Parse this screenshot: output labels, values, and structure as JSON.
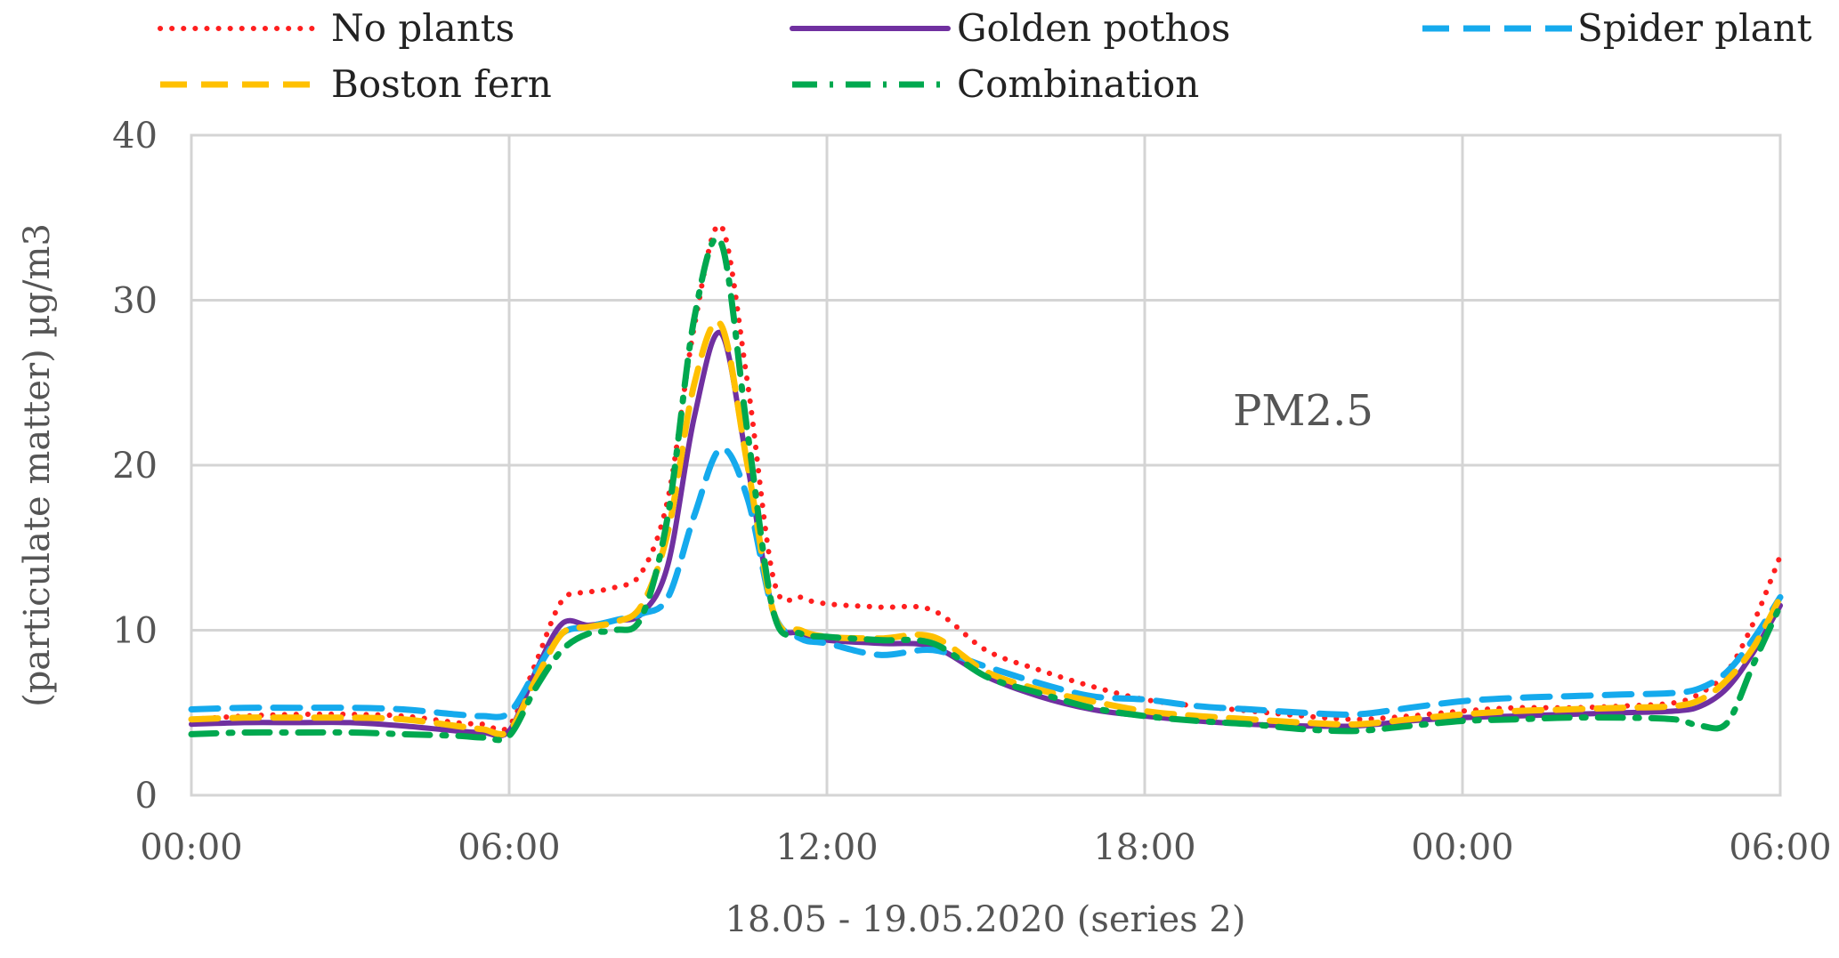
{
  "chart_data": {
    "type": "line",
    "title": "",
    "annotation": "PM2.5",
    "xlabel": "18.05 - 19.05.2020 (series 2)",
    "ylabel": "(particulate matter) µg/m3",
    "x_tick_labels": [
      "00:00",
      "06:00",
      "12:00",
      "18:00",
      "00:00",
      "06:00"
    ],
    "x_tick_hours": [
      0,
      6,
      12,
      18,
      24,
      30
    ],
    "xlim": [
      0,
      30
    ],
    "ylim": [
      0,
      40
    ],
    "y_ticks": [
      0,
      10,
      20,
      30,
      40
    ],
    "grid": true,
    "legend_position": "top",
    "x": [
      0,
      1,
      2,
      3,
      4,
      5,
      5.5,
      6,
      6.5,
      7,
      7.5,
      8,
      8.5,
      9,
      9.5,
      10,
      10.5,
      11,
      11.5,
      12,
      13,
      14,
      15,
      16,
      17,
      18,
      19,
      20,
      21,
      22,
      23,
      24,
      25,
      26,
      27,
      28,
      28.5,
      29,
      29.5,
      30
    ],
    "series": [
      {
        "name": "No plants",
        "color": "#ff1f1f",
        "style": "dotted",
        "values": [
          4.6,
          4.8,
          4.9,
          4.9,
          4.8,
          4.4,
          4.3,
          4.2,
          8.0,
          11.8,
          12.3,
          12.6,
          13.5,
          18.0,
          28.5,
          34.5,
          25.0,
          13.0,
          12.0,
          11.6,
          11.4,
          11.2,
          8.8,
          7.6,
          6.6,
          5.8,
          5.4,
          5.1,
          4.8,
          4.6,
          4.8,
          5.1,
          5.3,
          5.3,
          5.4,
          5.6,
          6.2,
          7.5,
          10.5,
          14.5
        ]
      },
      {
        "name": "Golden pothos",
        "color": "#7030a0",
        "style": "solid",
        "values": [
          4.3,
          4.4,
          4.4,
          4.4,
          4.2,
          3.9,
          3.8,
          3.9,
          7.5,
          10.4,
          10.3,
          10.6,
          11.0,
          14.0,
          23.0,
          28.0,
          20.0,
          11.0,
          9.8,
          9.4,
          9.2,
          9.0,
          7.2,
          6.0,
          5.2,
          4.8,
          4.5,
          4.3,
          4.2,
          4.2,
          4.5,
          4.7,
          4.8,
          4.9,
          5.0,
          5.1,
          5.4,
          6.5,
          8.7,
          11.5
        ]
      },
      {
        "name": "Spider plant",
        "color": "#15aaed",
        "style": "dashed",
        "values": [
          5.2,
          5.3,
          5.3,
          5.3,
          5.2,
          4.9,
          4.8,
          5.0,
          7.5,
          9.8,
          10.2,
          10.6,
          11.0,
          12.0,
          17.0,
          21.0,
          18.0,
          11.0,
          9.5,
          9.2,
          8.5,
          8.8,
          7.8,
          6.8,
          6.0,
          5.8,
          5.4,
          5.2,
          5.0,
          4.9,
          5.3,
          5.7,
          5.9,
          6.0,
          6.1,
          6.2,
          6.5,
          7.5,
          9.5,
          12.0
        ]
      },
      {
        "name": "Boston fern",
        "color": "#ffc000",
        "style": "dashed",
        "values": [
          4.6,
          4.7,
          4.7,
          4.7,
          4.6,
          4.2,
          4.0,
          3.9,
          7.0,
          9.8,
          10.2,
          10.5,
          11.5,
          16.0,
          25.0,
          28.5,
          20.0,
          11.0,
          10.0,
          9.6,
          9.5,
          9.6,
          7.5,
          6.4,
          5.7,
          5.1,
          4.8,
          4.6,
          4.4,
          4.3,
          4.6,
          4.9,
          5.1,
          5.2,
          5.3,
          5.4,
          5.8,
          7.0,
          9.0,
          12.0
        ]
      },
      {
        "name": "Combination",
        "color": "#00a84f",
        "style": "dashdot",
        "values": [
          3.7,
          3.8,
          3.8,
          3.8,
          3.7,
          3.6,
          3.5,
          3.6,
          6.5,
          8.8,
          9.8,
          10.0,
          10.8,
          17.0,
          29.0,
          33.5,
          22.0,
          11.0,
          9.8,
          9.6,
          9.4,
          9.2,
          7.2,
          6.2,
          5.3,
          4.8,
          4.5,
          4.3,
          4.0,
          3.9,
          4.2,
          4.5,
          4.6,
          4.7,
          4.7,
          4.6,
          4.2,
          4.4,
          8.0,
          11.5
        ]
      }
    ],
    "legend_order": [
      {
        "series": "No plants",
        "col": 0,
        "row": 0
      },
      {
        "series": "Golden pothos",
        "col": 1,
        "row": 0
      },
      {
        "series": "Spider plant",
        "col": 2,
        "row": 0
      },
      {
        "series": "Boston fern",
        "col": 0,
        "row": 1
      },
      {
        "series": "Combination",
        "col": 1,
        "row": 1
      }
    ]
  }
}
